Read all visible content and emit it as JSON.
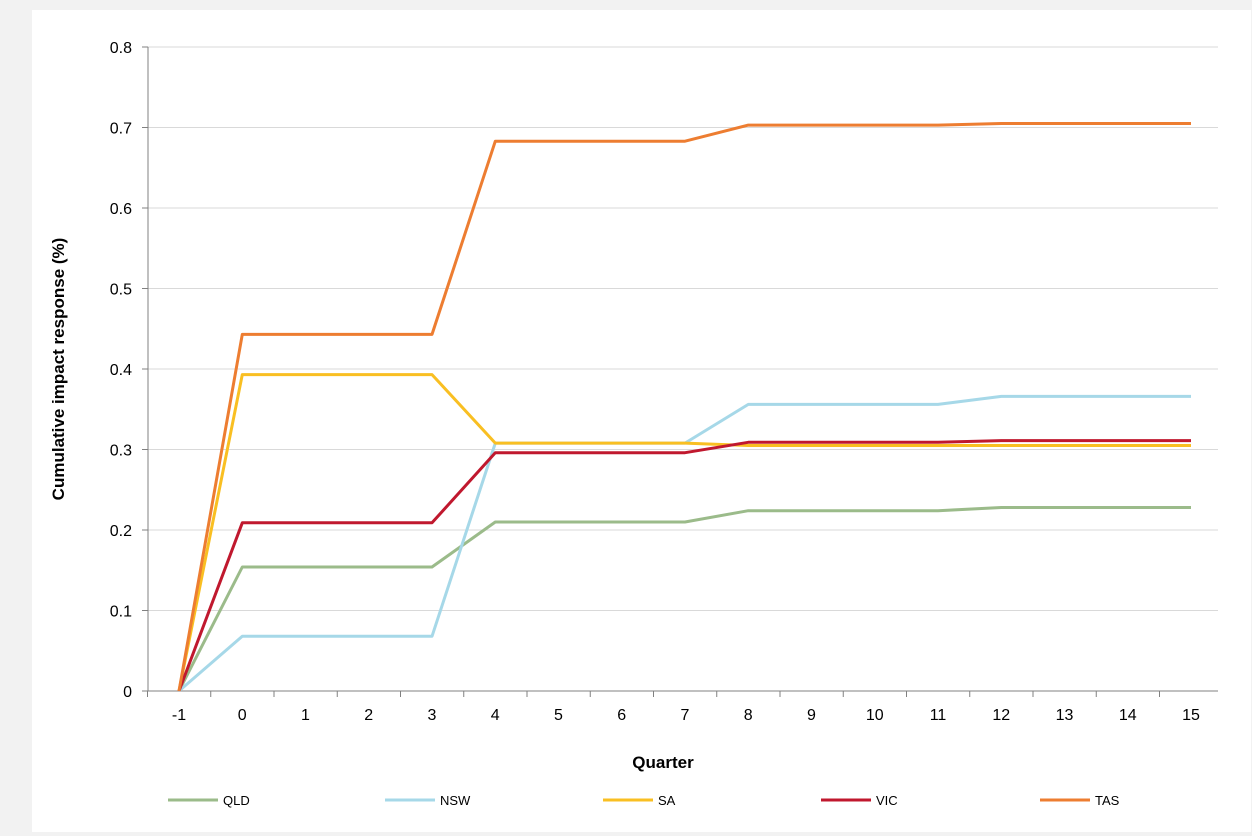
{
  "chart_data": {
    "type": "line",
    "title": "",
    "xlabel": "Quarter",
    "ylabel": "Cumulative impact response (%)",
    "x": [
      "-1",
      "0",
      "1",
      "2",
      "3",
      "4",
      "5",
      "6",
      "7",
      "8",
      "9",
      "10",
      "11",
      "12",
      "13",
      "14",
      "15"
    ],
    "ylim": [
      0,
      0.8
    ],
    "yticks": [
      "0",
      "0.1",
      "0.2",
      "0.3",
      "0.4",
      "0.5",
      "0.6",
      "0.7",
      "0.8"
    ],
    "grid": true,
    "legend_position": "bottom",
    "series": [
      {
        "name": "QLD",
        "color": "#9bbb8a",
        "values": [
          0,
          0.154,
          0.154,
          0.154,
          0.154,
          0.21,
          0.21,
          0.21,
          0.21,
          0.224,
          0.224,
          0.224,
          0.224,
          0.228,
          0.228,
          0.228,
          0.228
        ]
      },
      {
        "name": "NSW",
        "color": "#a6d8e8",
        "values": [
          0,
          0.068,
          0.068,
          0.068,
          0.068,
          0.308,
          0.308,
          0.308,
          0.308,
          0.356,
          0.356,
          0.356,
          0.356,
          0.366,
          0.366,
          0.366,
          0.366
        ]
      },
      {
        "name": "SA",
        "color": "#f9bf22",
        "values": [
          0,
          0.393,
          0.393,
          0.393,
          0.393,
          0.308,
          0.308,
          0.308,
          0.308,
          0.305,
          0.305,
          0.305,
          0.305,
          0.305,
          0.305,
          0.305,
          0.305
        ]
      },
      {
        "name": "VIC",
        "color": "#c0182e",
        "values": [
          0,
          0.209,
          0.209,
          0.209,
          0.209,
          0.296,
          0.296,
          0.296,
          0.296,
          0.309,
          0.309,
          0.309,
          0.309,
          0.311,
          0.311,
          0.311,
          0.311
        ]
      },
      {
        "name": "TAS",
        "color": "#ed7d31",
        "values": [
          0,
          0.443,
          0.443,
          0.443,
          0.443,
          0.683,
          0.683,
          0.683,
          0.683,
          0.703,
          0.703,
          0.703,
          0.703,
          0.705,
          0.705,
          0.705,
          0.705
        ]
      }
    ]
  }
}
